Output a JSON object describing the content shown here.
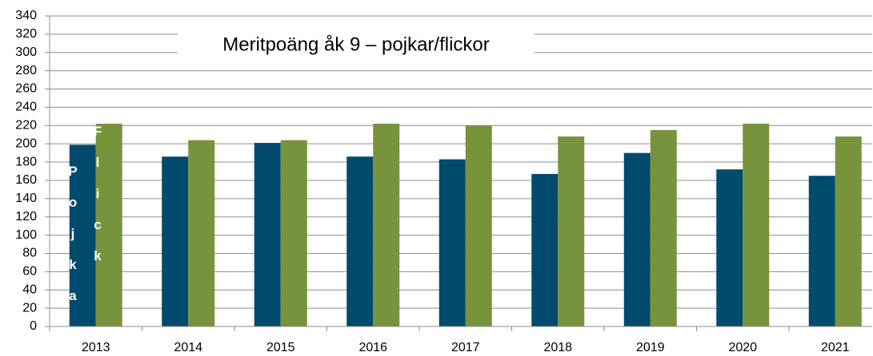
{
  "chart_data": {
    "type": "bar",
    "title": "Meritpoäng åk 9 – pojkar/flickor",
    "categories": [
      "2013",
      "2014",
      "2015",
      "2016",
      "2017",
      "2018",
      "2019",
      "2020",
      "2021"
    ],
    "series": [
      {
        "name": "Pojka",
        "color": "#004a6e",
        "values": [
          199,
          186,
          201,
          186,
          183,
          167,
          190,
          172,
          165
        ]
      },
      {
        "name": "Flick",
        "color": "#77933c",
        "values": [
          222,
          204,
          204,
          222,
          220,
          208,
          215,
          222,
          208
        ]
      }
    ],
    "ylim": [
      0,
      340
    ],
    "yticks": [
      0,
      20,
      40,
      60,
      80,
      100,
      120,
      140,
      160,
      180,
      200,
      220,
      240,
      260,
      280,
      300,
      320,
      340
    ],
    "grid": true
  }
}
